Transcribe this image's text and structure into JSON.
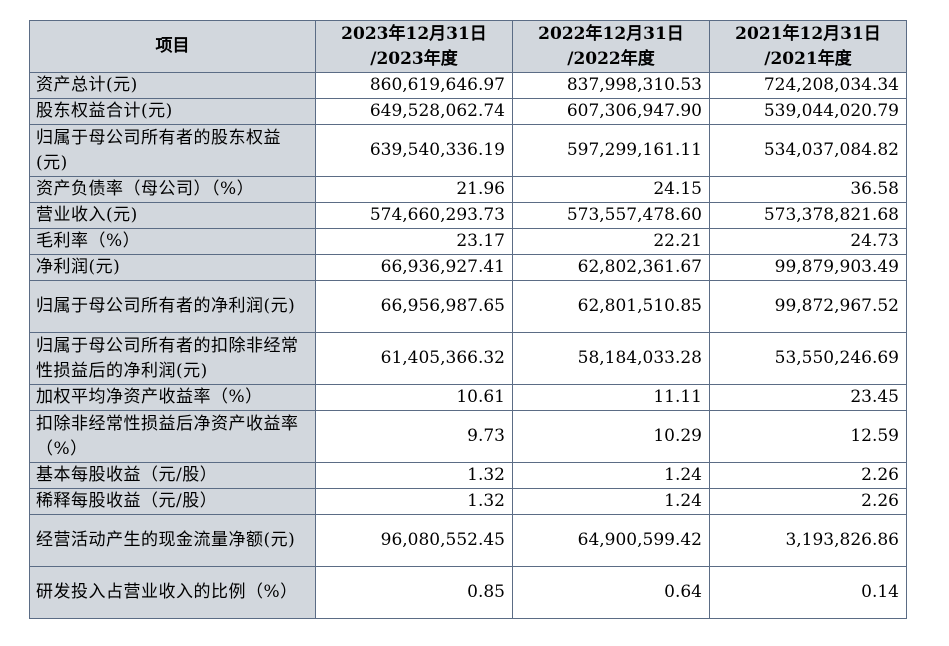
{
  "table": {
    "headers": [
      "项目",
      "2023年12月31日\n/2023年度",
      "2022年12月31日\n/2022年度",
      "2021年12月31日\n/2021年度"
    ],
    "rows": [
      {
        "label": "资产总计(元)",
        "values": [
          "860,619,646.97",
          "837,998,310.53",
          "724,208,034.34"
        ]
      },
      {
        "label": "股东权益合计(元)",
        "values": [
          "649,528,062.74",
          "607,306,947.90",
          "539,044,020.79"
        ]
      },
      {
        "label": "归属于母公司所有者的股东权益(元)",
        "values": [
          "639,540,336.19",
          "597,299,161.11",
          "534,037,084.82"
        ]
      },
      {
        "label": "资产负债率（母公司）（%）",
        "values": [
          "21.96",
          "24.15",
          "36.58"
        ]
      },
      {
        "label": "营业收入(元)",
        "values": [
          "574,660,293.73",
          "573,557,478.60",
          "573,378,821.68"
        ]
      },
      {
        "label": "毛利率（%）",
        "values": [
          "23.17",
          "22.21",
          "24.73"
        ]
      },
      {
        "label": "净利润(元)",
        "values": [
          "66,936,927.41",
          "62,802,361.67",
          "99,879,903.49"
        ]
      },
      {
        "label": "归属于母公司所有者的净利润(元)",
        "values": [
          "66,956,987.65",
          "62,801,510.85",
          "99,872,967.52"
        ]
      },
      {
        "label": "归属于母公司所有者的扣除非经常性损益后的净利润(元)",
        "values": [
          "61,405,366.32",
          "58,184,033.28",
          "53,550,246.69"
        ]
      },
      {
        "label": "加权平均净资产收益率（%）",
        "values": [
          "10.61",
          "11.11",
          "23.45"
        ]
      },
      {
        "label": "扣除非经常性损益后净资产收益率（%）",
        "values": [
          "9.73",
          "10.29",
          "12.59"
        ]
      },
      {
        "label": "基本每股收益（元/股）",
        "values": [
          "1.32",
          "1.24",
          "2.26"
        ]
      },
      {
        "label": "稀释每股收益（元/股）",
        "values": [
          "1.32",
          "1.24",
          "2.26"
        ]
      },
      {
        "label": "经营活动产生的现金流量净额(元)",
        "values": [
          "96,080,552.45",
          "64,900,599.42",
          "3,193,826.86"
        ]
      },
      {
        "label": "研发投入占营业收入的比例（%）",
        "values": [
          "0.85",
          "0.64",
          "0.14"
        ]
      }
    ]
  }
}
